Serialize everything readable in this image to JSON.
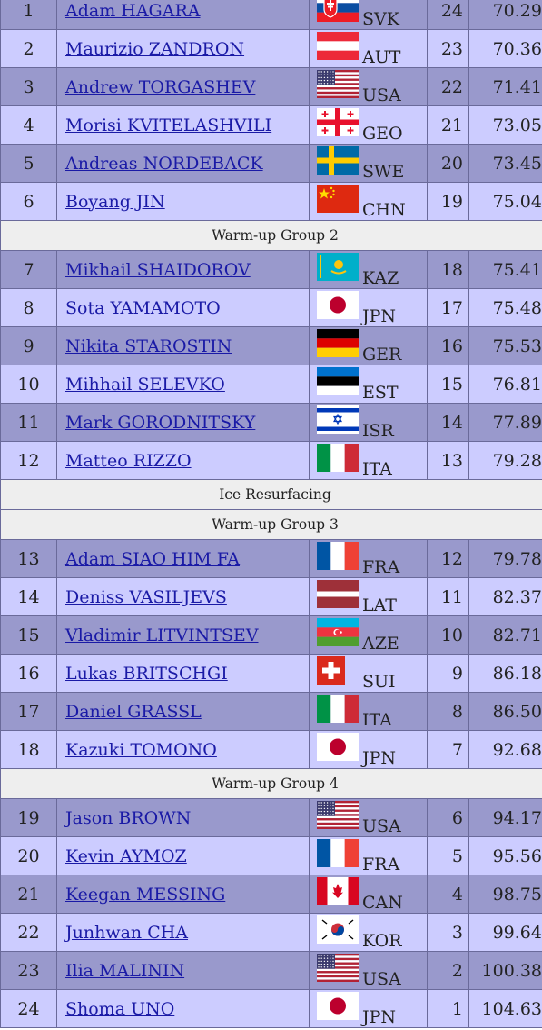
{
  "rows": [
    {
      "type": "skater",
      "no": "1",
      "name": "Adam HAGARA",
      "flag": "svk-flag-icon",
      "nat": "SVK",
      "sno": "24",
      "pts": "70.29"
    },
    {
      "type": "skater",
      "no": "2",
      "name": "Maurizio ZANDRON",
      "flag": "aut-flag-icon",
      "nat": "AUT",
      "sno": "23",
      "pts": "70.36"
    },
    {
      "type": "skater",
      "no": "3",
      "name": "Andrew TORGASHEV",
      "flag": "usa-flag-icon",
      "nat": "USA",
      "sno": "22",
      "pts": "71.41"
    },
    {
      "type": "skater",
      "no": "4",
      "name": "Morisi KVITELASHVILI",
      "flag": "geo-flag-icon",
      "nat": "GEO",
      "sno": "21",
      "pts": "73.05"
    },
    {
      "type": "skater",
      "no": "5",
      "name": "Andreas NORDEBACK",
      "flag": "swe-flag-icon",
      "nat": "SWE",
      "sno": "20",
      "pts": "73.45"
    },
    {
      "type": "skater",
      "no": "6",
      "name": "Boyang JIN",
      "flag": "chn-flag-icon",
      "nat": "CHN",
      "sno": "19",
      "pts": "75.04"
    },
    {
      "type": "group",
      "label": "Warm-up Group 2"
    },
    {
      "type": "skater",
      "no": "7",
      "name": "Mikhail SHAIDOROV",
      "flag": "kaz-flag-icon",
      "nat": "KAZ",
      "sno": "18",
      "pts": "75.41"
    },
    {
      "type": "skater",
      "no": "8",
      "name": "Sota YAMAMOTO",
      "flag": "jpn-flag-icon",
      "nat": "JPN",
      "sno": "17",
      "pts": "75.48"
    },
    {
      "type": "skater",
      "no": "9",
      "name": "Nikita STAROSTIN",
      "flag": "ger-flag-icon",
      "nat": "GER",
      "sno": "16",
      "pts": "75.53"
    },
    {
      "type": "skater",
      "no": "10",
      "name": "Mihhail SELEVKO",
      "flag": "est-flag-icon",
      "nat": "EST",
      "sno": "15",
      "pts": "76.81"
    },
    {
      "type": "skater",
      "no": "11",
      "name": "Mark GORODNITSKY",
      "flag": "isr-flag-icon",
      "nat": "ISR",
      "sno": "14",
      "pts": "77.89"
    },
    {
      "type": "skater",
      "no": "12",
      "name": "Matteo RIZZO",
      "flag": "ita-flag-icon",
      "nat": "ITA",
      "sno": "13",
      "pts": "79.28"
    },
    {
      "type": "group",
      "label": "Ice Resurfacing"
    },
    {
      "type": "group",
      "label": "Warm-up Group 3"
    },
    {
      "type": "skater",
      "no": "13",
      "name": "Adam SIAO HIM FA",
      "flag": "fra-flag-icon",
      "nat": "FRA",
      "sno": "12",
      "pts": "79.78"
    },
    {
      "type": "skater",
      "no": "14",
      "name": "Deniss VASILJEVS",
      "flag": "lat-flag-icon",
      "nat": "LAT",
      "sno": "11",
      "pts": "82.37"
    },
    {
      "type": "skater",
      "no": "15",
      "name": "Vladimir LITVINTSEV",
      "flag": "aze-flag-icon",
      "nat": "AZE",
      "sno": "10",
      "pts": "82.71"
    },
    {
      "type": "skater",
      "no": "16",
      "name": "Lukas BRITSCHGI",
      "flag": "sui-flag-icon",
      "nat": "SUI",
      "sno": "9",
      "pts": "86.18"
    },
    {
      "type": "skater",
      "no": "17",
      "name": "Daniel GRASSL",
      "flag": "ita-flag-icon",
      "nat": "ITA",
      "sno": "8",
      "pts": "86.50"
    },
    {
      "type": "skater",
      "no": "18",
      "name": "Kazuki TOMONO",
      "flag": "jpn-flag-icon",
      "nat": "JPN",
      "sno": "7",
      "pts": "92.68"
    },
    {
      "type": "group",
      "label": "Warm-up Group 4"
    },
    {
      "type": "skater",
      "no": "19",
      "name": "Jason BROWN",
      "flag": "usa-flag-icon",
      "nat": "USA",
      "sno": "6",
      "pts": "94.17"
    },
    {
      "type": "skater",
      "no": "20",
      "name": "Kevin AYMOZ",
      "flag": "fra-flag-icon",
      "nat": "FRA",
      "sno": "5",
      "pts": "95.56"
    },
    {
      "type": "skater",
      "no": "21",
      "name": "Keegan MESSING",
      "flag": "can-flag-icon",
      "nat": "CAN",
      "sno": "4",
      "pts": "98.75"
    },
    {
      "type": "skater",
      "no": "22",
      "name": "Junhwan CHA",
      "flag": "kor-flag-icon",
      "nat": "KOR",
      "sno": "3",
      "pts": "99.64"
    },
    {
      "type": "skater",
      "no": "23",
      "name": "Ilia MALININ",
      "flag": "usa-flag-icon",
      "nat": "USA",
      "sno": "2",
      "pts": "100.38"
    },
    {
      "type": "skater",
      "no": "24",
      "name": "Shoma UNO",
      "flag": "jpn-flag-icon",
      "nat": "JPN",
      "sno": "1",
      "pts": "104.63"
    }
  ],
  "colors": {
    "row_dark": "#9999cc",
    "row_light": "#ccccff",
    "group_bg": "#eeeeee",
    "link": "#1a1aa6"
  }
}
